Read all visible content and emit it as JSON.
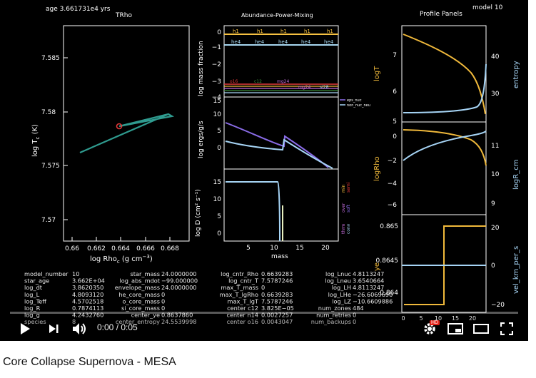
{
  "header": {
    "age": "age 3.661731e4 yrs",
    "model": "model 10"
  },
  "panel_titles": {
    "trho": "TRho",
    "abundance": "Abundance-Power-Mixing",
    "profile": "Profile Panels"
  },
  "trho": {
    "xlabel": "log Rho",
    "xlabel_sub": "c",
    "xlabel_units": "(g cm",
    "xlabel_exp": "−3",
    "xlabel_close": ")",
    "ylabel": "log T",
    "ylabel_sub": "c",
    "ylabel_units": "(K)",
    "xticks": [
      "0.66",
      "0.662",
      "0.664",
      "0.666",
      "0.668"
    ],
    "yticks": [
      "7.585",
      "7.58",
      "7.575",
      "7.57"
    ]
  },
  "abundance": {
    "ylabel_mass": "log mass fraction",
    "ylabel_power": "log ergs/g/s",
    "ylabel_mix": "log D (cm² s⁻¹)",
    "xlabel": "mass",
    "ticks_mass": [
      "0",
      "−1",
      "−2",
      "−3",
      "−4"
    ],
    "ticks_power": [
      "15",
      "10",
      "5",
      "0"
    ],
    "ticks_mix": [
      "15",
      "10",
      "5",
      "0"
    ],
    "xticks": [
      "5",
      "10",
      "15",
      "20"
    ],
    "top_labels": [
      "h1",
      "h1",
      "h1",
      "h1",
      "h1"
    ],
    "he4_labels": [
      "he4",
      "he4",
      "he4",
      "he4",
      "he4"
    ],
    "low_labels": [
      "o16",
      "c12",
      "mg24",
      "mg24",
      "si28"
    ],
    "legend_power": [
      "eps_nuc",
      "non_nuc_neu"
    ],
    "legend_mix_right": [
      "min",
      "semi",
      "over",
      "soft",
      "thrm",
      "conv"
    ],
    "colors": {
      "h1": "#f6c141",
      "he4": "#a7d7f0",
      "o16": "#e33a3a",
      "c12": "#3a8d3a",
      "mg24": "#c46bd8",
      "purple": "#8a6ce8",
      "blue": "#a6d4f5",
      "teal": "#2f9b8f",
      "gold": "#f0b93b"
    }
  },
  "profile": {
    "y_left": [
      "logT",
      "logRho",
      "ye"
    ],
    "y_right": [
      "entropy",
      "logR_cm",
      "vel_km_per_s"
    ],
    "ticks_logT": [
      "7",
      "6",
      "5"
    ],
    "ticks_entropy": [
      "40",
      "30"
    ],
    "ticks_logRho": [
      "0",
      "−2",
      "−4",
      "−6"
    ],
    "ticks_logR": [
      "11",
      "10",
      "9"
    ],
    "ticks_ye": [
      "0.865",
      "0.8645",
      "0.864"
    ],
    "ticks_vel": [
      "20",
      "0",
      "−20"
    ],
    "xticks": [
      "0",
      "5",
      "10",
      "15",
      "20"
    ]
  },
  "stats": {
    "rows": [
      [
        "model_number",
        "10",
        "star_mass",
        "24.0000000",
        "log_cntr_Rho",
        "0.6639283",
        "log_Lnuc",
        "4.8113247"
      ],
      [
        "star_age",
        "3.662E+04",
        "log_abs_mdot",
        "−99.000000",
        "log_cntr_T",
        "7.5787246",
        "log_Lneu",
        "3.6540664"
      ],
      [
        "log_dt",
        "3.8620350",
        "envelope_mass",
        "24.0000000",
        "max_T_mass",
        "0",
        "log_LH",
        "4.8113247"
      ],
      [
        "log_L",
        "4.8093120",
        "he_core_mass",
        "0",
        "max_T_lgRho",
        "0.6639283",
        "log_LHe",
        "−26.6069690"
      ],
      [
        "log_Teff",
        "4.5702518",
        "o_core_mass",
        "0",
        "max_T_lgT",
        "7.5787246",
        "log_LZ",
        "−10.6609886"
      ],
      [
        "log_R",
        "0.7874113",
        "si_core_mass",
        "0",
        "center c12",
        "3.825E−05",
        "num_zones",
        "484"
      ],
      [
        "log_g",
        "4.2432760",
        "center_ye",
        "0.8637860",
        "center n14",
        "0.0027257",
        "num_retries",
        "0"
      ],
      [
        "species",
        "8",
        "center_entropy",
        "24.5539998",
        "center o16",
        "0.0043047",
        "num_backups",
        "0"
      ]
    ]
  },
  "player": {
    "time": "0:00 / 0:05",
    "hd_badge": "HD"
  },
  "video_title": "Core Collapse Supernova - MESA"
}
